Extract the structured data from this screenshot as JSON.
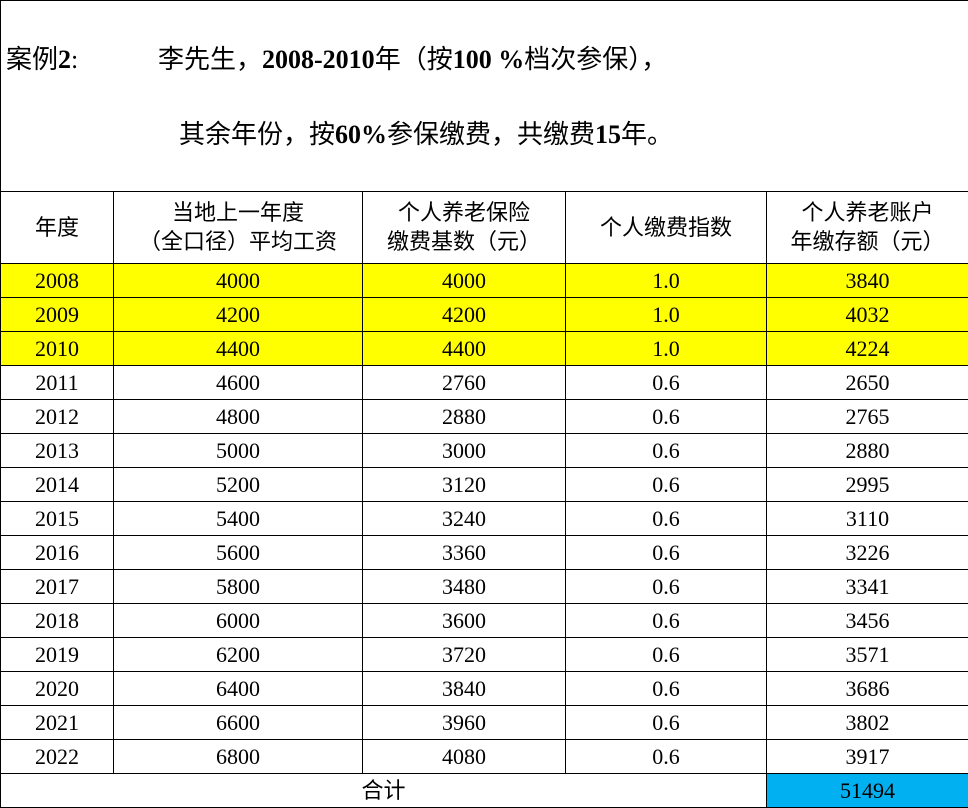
{
  "title": {
    "label": "案例2:",
    "line1": "李先生，2008-2010年（按100 %档次参保），",
    "line2": "其余年份，按60%参保缴费，共缴费15年。"
  },
  "table": {
    "header": [
      "年度",
      "当地上一年度\n（全口径）平均工资",
      "个人养老保险\n缴费基数（元）",
      "个人缴费指数",
      "个人养老账户\n年缴存额（元）"
    ],
    "rows": [
      [
        "2008",
        "4000",
        "4000",
        "1.0",
        "3840"
      ],
      [
        "2009",
        "4200",
        "4200",
        "1.0",
        "4032"
      ],
      [
        "2010",
        "4400",
        "4400",
        "1.0",
        "4224"
      ],
      [
        "2011",
        "4600",
        "2760",
        "0.6",
        "2650"
      ],
      [
        "2012",
        "4800",
        "2880",
        "0.6",
        "2765"
      ],
      [
        "2013",
        "5000",
        "3000",
        "0.6",
        "2880"
      ],
      [
        "2014",
        "5200",
        "3120",
        "0.6",
        "2995"
      ],
      [
        "2015",
        "5400",
        "3240",
        "0.6",
        "3110"
      ],
      [
        "2016",
        "5600",
        "3360",
        "0.6",
        "3226"
      ],
      [
        "2017",
        "5800",
        "3480",
        "0.6",
        "3341"
      ],
      [
        "2018",
        "6000",
        "3600",
        "0.6",
        "3456"
      ],
      [
        "2019",
        "6200",
        "3720",
        "0.6",
        "3571"
      ],
      [
        "2020",
        "6400",
        "3840",
        "0.6",
        "3686"
      ],
      [
        "2021",
        "6600",
        "3960",
        "0.6",
        "3802"
      ],
      [
        "2022",
        "6800",
        "4080",
        "0.6",
        "3917"
      ]
    ],
    "total": {
      "label": "合计",
      "value": "51494"
    }
  }
}
